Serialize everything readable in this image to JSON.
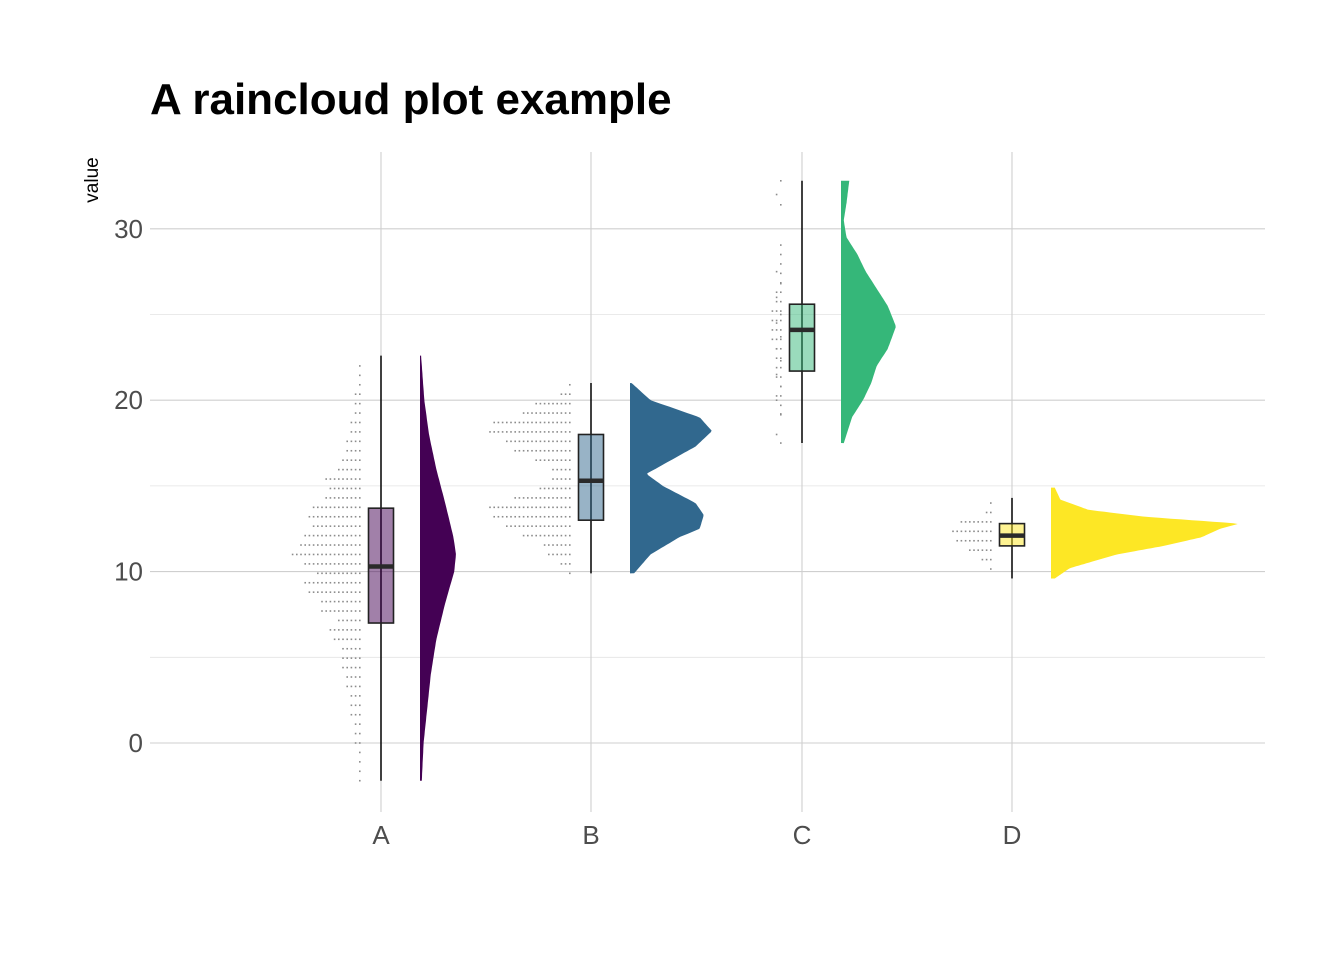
{
  "chart_data": {
    "type": "raincloud",
    "title": "A raincloud plot example",
    "xlabel": "",
    "ylabel": "value",
    "ylim": [
      -4,
      35
    ],
    "yticks": [
      0,
      10,
      20,
      30
    ],
    "grid": true,
    "legend": "none",
    "categories": [
      "A",
      "B",
      "C",
      "D"
    ],
    "colors": {
      "A": "#440154",
      "B": "#31688e",
      "C": "#35b779",
      "D": "#fde725"
    },
    "groups": [
      {
        "name": "A",
        "min": -2.2,
        "q1": 7.0,
        "median": 10.3,
        "q3": 13.7,
        "max": 22.6,
        "density": {
          "y": [
            -2.2,
            0,
            2,
            4,
            6,
            8,
            10,
            11,
            12,
            14,
            16,
            18,
            20,
            22.6
          ],
          "d": [
            0.05,
            0.1,
            0.2,
            0.3,
            0.45,
            0.68,
            0.95,
            1.0,
            0.93,
            0.7,
            0.45,
            0.25,
            0.12,
            0.03
          ]
        }
      },
      {
        "name": "B",
        "min": 9.9,
        "q1": 13.0,
        "median": 15.3,
        "q3": 18.0,
        "max": 21.0,
        "density": {
          "y": [
            9.9,
            11,
            12,
            12.5,
            13.3,
            14,
            15,
            15.7,
            16.5,
            17.3,
            18.2,
            19,
            20,
            21
          ],
          "d": [
            0.05,
            0.25,
            0.6,
            0.85,
            0.9,
            0.8,
            0.4,
            0.2,
            0.5,
            0.8,
            1.0,
            0.85,
            0.25,
            0.02
          ]
        }
      },
      {
        "name": "C",
        "min": 17.5,
        "q1": 21.7,
        "median": 24.1,
        "q3": 25.6,
        "max": 32.8,
        "density": {
          "y": [
            17.5,
            19,
            20,
            21,
            22,
            23,
            24.3,
            25.5,
            26.5,
            27.5,
            28.5,
            29.5,
            30.5,
            31.5,
            32.8
          ],
          "d": [
            0.05,
            0.2,
            0.4,
            0.55,
            0.65,
            0.85,
            1.0,
            0.85,
            0.65,
            0.45,
            0.3,
            0.1,
            0.05,
            0.1,
            0.15
          ]
        }
      },
      {
        "name": "D",
        "min": 9.6,
        "q1": 11.5,
        "median": 12.1,
        "q3": 12.8,
        "max": 14.3,
        "density": {
          "y": [
            9.6,
            10.2,
            11,
            11.5,
            12,
            12.5,
            12.8,
            13.2,
            13.6,
            14.2,
            14.9
          ],
          "d": [
            0.02,
            0.1,
            0.35,
            0.6,
            0.8,
            0.9,
            1.0,
            0.5,
            0.2,
            0.05,
            0.02
          ]
        }
      }
    ]
  }
}
